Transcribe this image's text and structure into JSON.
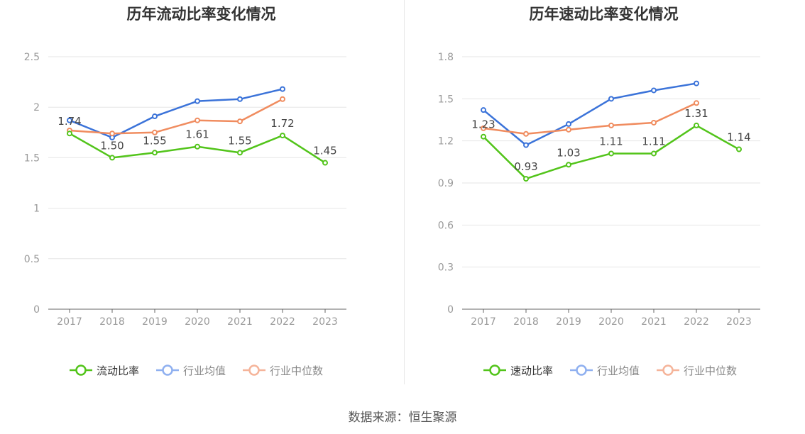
{
  "source": "数据来源：恒生聚源",
  "colors": {
    "green": "#52c41a",
    "blue": "#3b73d9",
    "orange": "#f08c5f",
    "legend_blue": "#8fb0f0",
    "legend_orange": "#f5b49a",
    "axis_text": "#999999",
    "grid": "#e6e6e6",
    "axis_line": "#666666"
  },
  "chart_data": [
    {
      "type": "line",
      "title": "历年流动比率变化情况",
      "categories": [
        "2017",
        "2018",
        "2019",
        "2020",
        "2021",
        "2022",
        "2023"
      ],
      "ylim": [
        0,
        2.5
      ],
      "yticks": [
        "0",
        "0.5",
        "1",
        "1.5",
        "2",
        "2.5"
      ],
      "grid": true,
      "legend_position": "bottom",
      "series": [
        {
          "name": "流动比率",
          "values": [
            1.74,
            1.5,
            1.55,
            1.61,
            1.55,
            1.72,
            1.45
          ],
          "labels": [
            "1.74",
            "1.50",
            "1.55",
            "1.61",
            "1.55",
            "1.72",
            "1.45"
          ]
        },
        {
          "name": "行业均值",
          "values": [
            1.87,
            1.7,
            1.91,
            2.06,
            2.08,
            2.18,
            null
          ]
        },
        {
          "name": "行业中位数",
          "values": [
            1.77,
            1.74,
            1.75,
            1.87,
            1.86,
            2.08,
            null
          ]
        }
      ]
    },
    {
      "type": "line",
      "title": "历年速动比率变化情况",
      "categories": [
        "2017",
        "2018",
        "2019",
        "2020",
        "2021",
        "2022",
        "2023"
      ],
      "ylim": [
        0,
        1.8
      ],
      "yticks": [
        "0",
        "0.3",
        "0.6",
        "0.9",
        "1.2",
        "1.5",
        "1.8"
      ],
      "grid": true,
      "legend_position": "bottom",
      "series": [
        {
          "name": "速动比率",
          "values": [
            1.23,
            0.93,
            1.03,
            1.11,
            1.11,
            1.31,
            1.14
          ],
          "labels": [
            "1.23",
            "0.93",
            "1.03",
            "1.11",
            "1.11",
            "1.31",
            "1.14"
          ]
        },
        {
          "name": "行业均值",
          "values": [
            1.42,
            1.17,
            1.32,
            1.5,
            1.56,
            1.61,
            null
          ]
        },
        {
          "name": "行业中位数",
          "values": [
            1.29,
            1.25,
            1.28,
            1.31,
            1.33,
            1.47,
            null
          ]
        }
      ]
    }
  ]
}
